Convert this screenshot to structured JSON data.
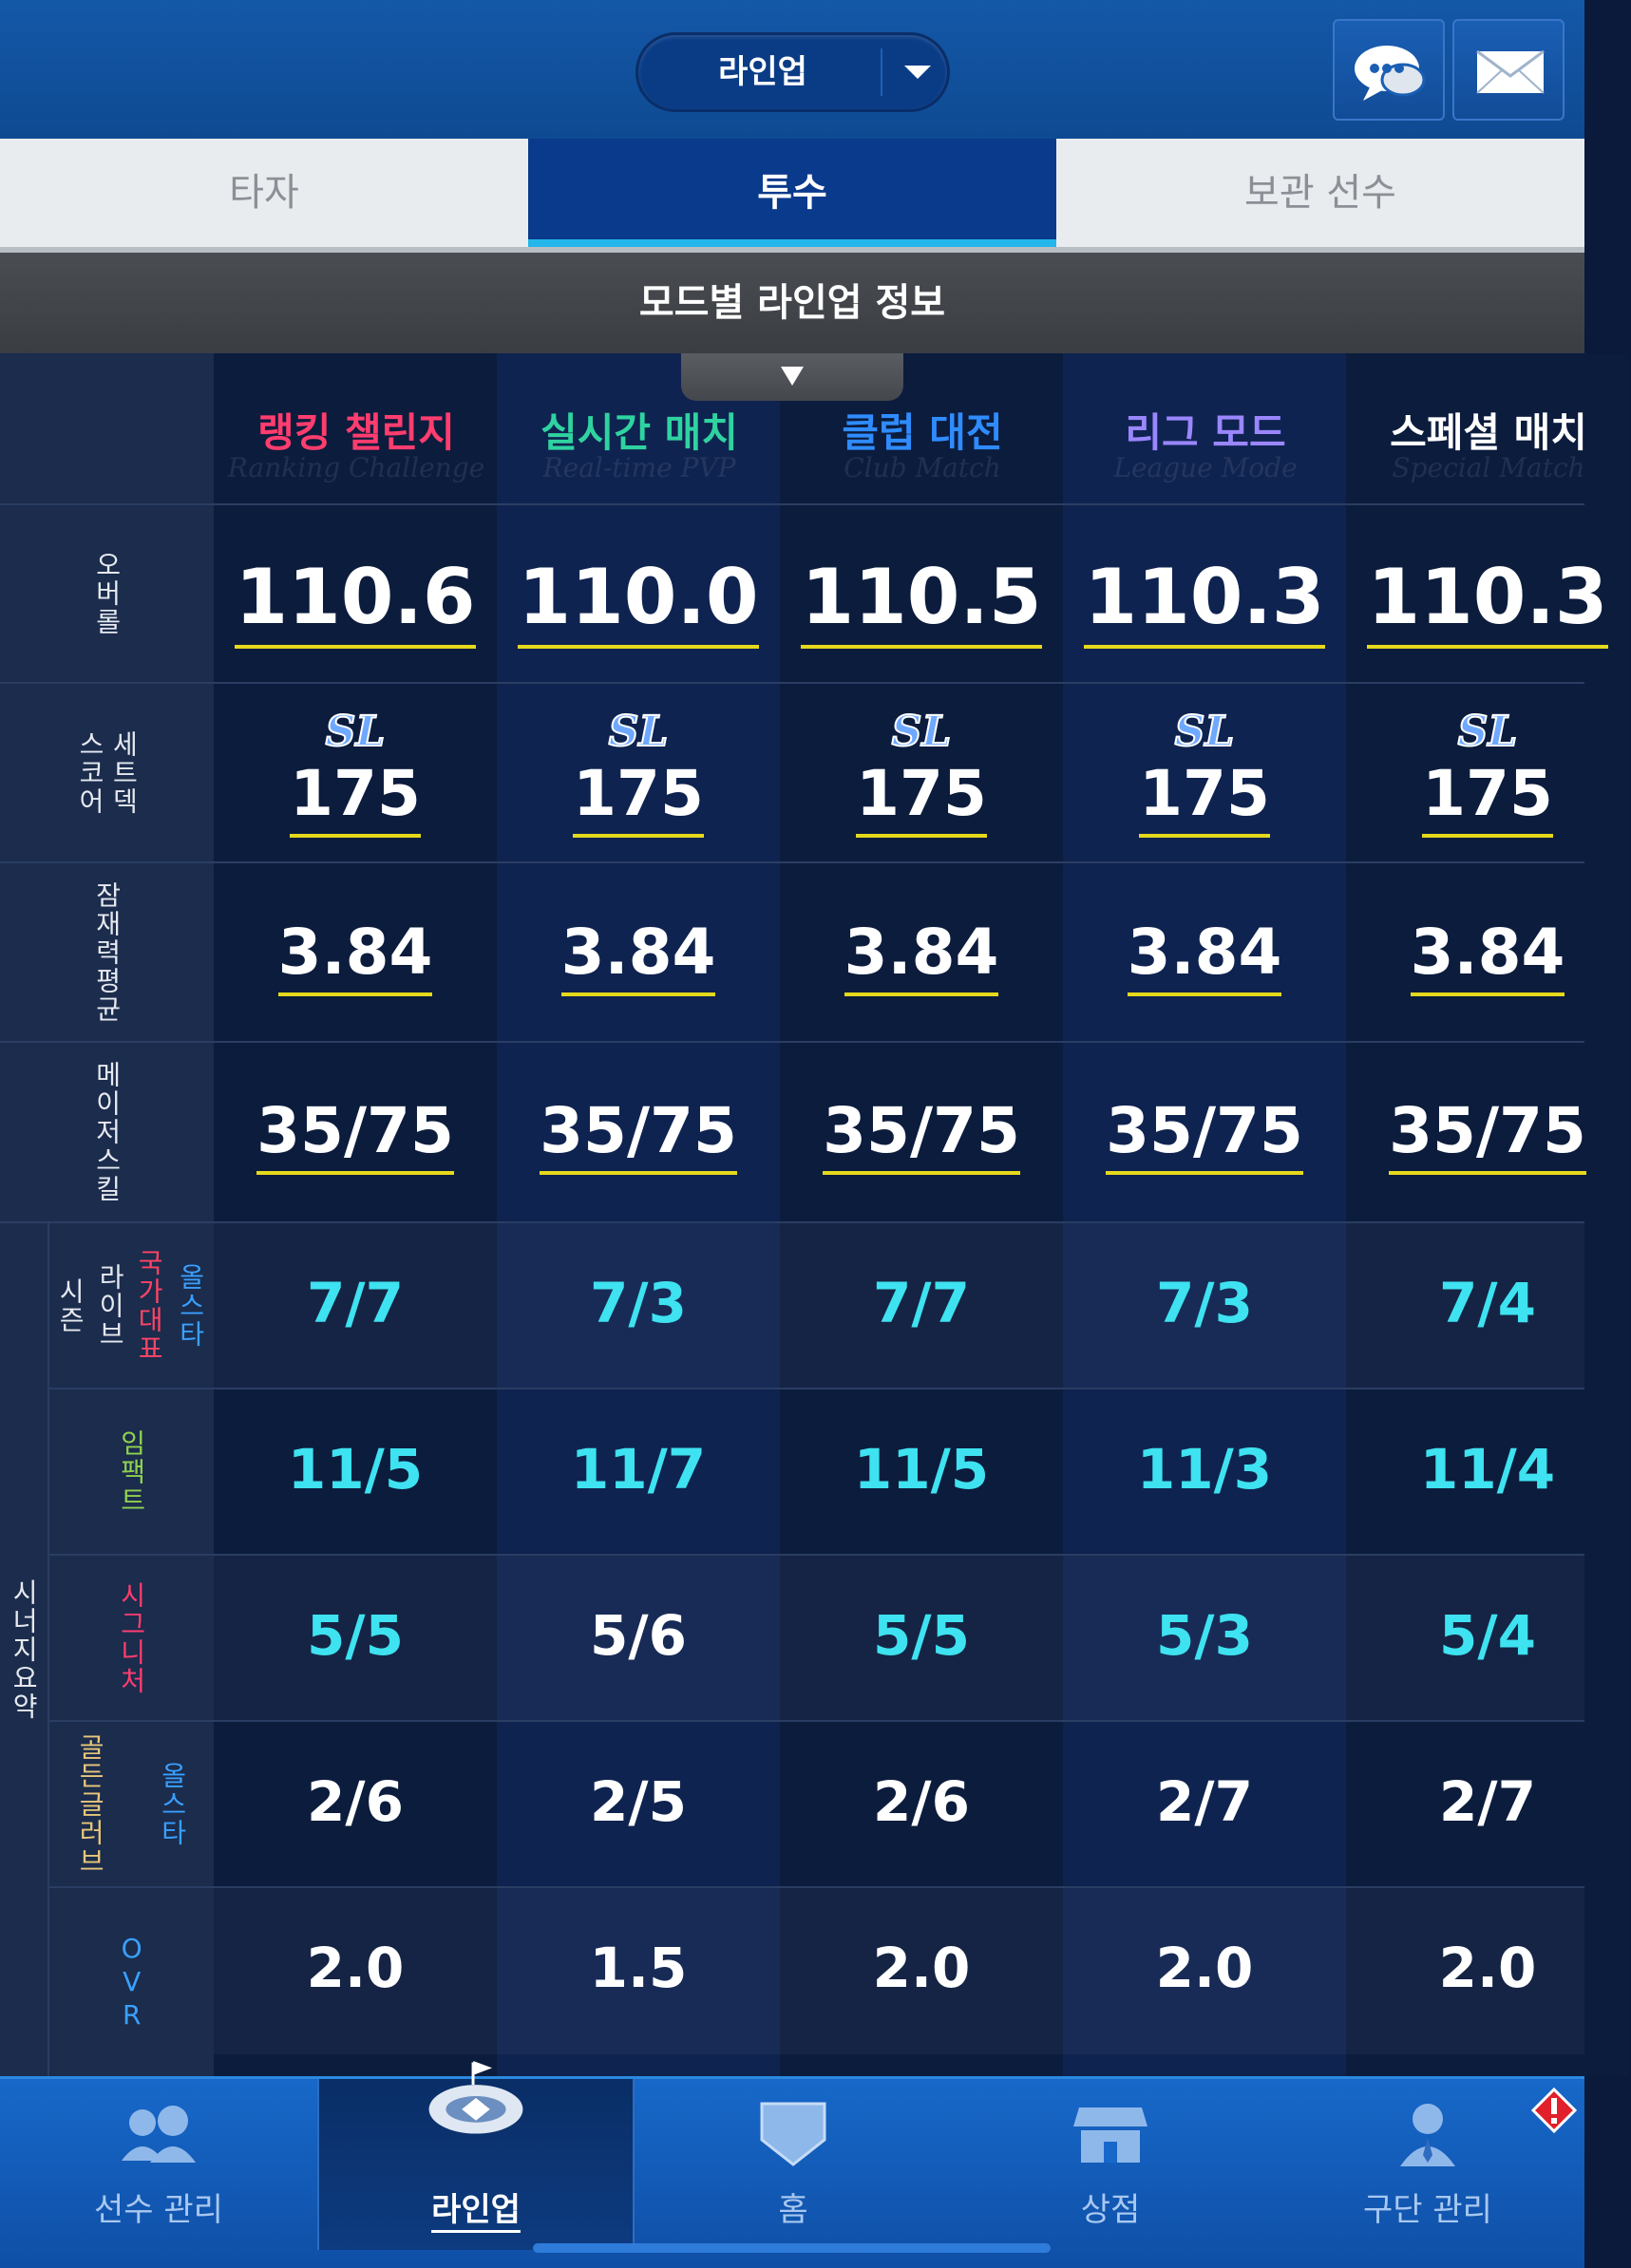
{
  "header": {
    "dropdown_label": "라인업",
    "chat_icon": "chat-bubble-icon",
    "mail_icon": "mail-icon"
  },
  "tabs": [
    {
      "label": "타자",
      "active": false
    },
    {
      "label": "투수",
      "active": true
    },
    {
      "label": "보관 선수",
      "active": false
    }
  ],
  "section_title": "모드별 라인업 정보",
  "row_labels": {
    "ovr": "오버롤",
    "setdeck_a": "세트덱",
    "setdeck_b": "스코어",
    "potential": "잠재력평균",
    "major": "메이저스킬",
    "synergy": "시너지요약",
    "season": "시즌",
    "live": "라이브",
    "national": "국가대표",
    "allstar": "올스타",
    "impact": "임팩트",
    "signature": "시그니처",
    "goldglove": "골든글러브",
    "allstar2": "올스타",
    "ovr2": "OVR"
  },
  "modes": [
    {
      "ko": "랭킹 챌린지",
      "en": "Ranking Challenge",
      "color": "#ff3d6e",
      "ovr": "110.6",
      "setdeck": "175",
      "potential": "3.84",
      "major": "35/75",
      "syn1": "7/7",
      "syn2": "11/5",
      "syn3": "5/5",
      "syn4": "2/6",
      "syn5": "2.0"
    },
    {
      "ko": "실시간 매치",
      "en": "Real-time PVP",
      "color": "#2fd3a0",
      "ovr": "110.0",
      "setdeck": "175",
      "potential": "3.84",
      "major": "35/75",
      "syn1": "7/3",
      "syn2": "11/7",
      "syn3": "5/6",
      "syn4": "2/5",
      "syn5": "1.5"
    },
    {
      "ko": "클럽 대전",
      "en": "Club Match",
      "color": "#2f8cff",
      "ovr": "110.5",
      "setdeck": "175",
      "potential": "3.84",
      "major": "35/75",
      "syn1": "7/7",
      "syn2": "11/5",
      "syn3": "5/5",
      "syn4": "2/6",
      "syn5": "2.0"
    },
    {
      "ko": "리그 모드",
      "en": "League Mode",
      "color": "#9a86ff",
      "ovr": "110.3",
      "setdeck": "175",
      "potential": "3.84",
      "major": "35/75",
      "syn1": "7/3",
      "syn2": "11/3",
      "syn3": "5/3",
      "syn4": "2/7",
      "syn5": "2.0"
    },
    {
      "ko": "스페셜 매치",
      "en": "Special Match",
      "color": "#ffffff",
      "ovr": "110.3",
      "setdeck": "175",
      "potential": "3.84",
      "major": "35/75",
      "syn1": "7/4",
      "syn2": "11/4",
      "syn3": "5/4",
      "syn4": "2/7",
      "syn5": "2.0"
    }
  ],
  "nav": [
    {
      "label": "선수 관리",
      "icon": "players-icon",
      "active": false
    },
    {
      "label": "라인업",
      "icon": "stadium-icon",
      "active": true
    },
    {
      "label": "홈",
      "icon": "home-plate-icon",
      "active": false
    },
    {
      "label": "상점",
      "icon": "shop-icon",
      "active": false
    },
    {
      "label": "구단 관리",
      "icon": "manager-icon",
      "active": false
    }
  ]
}
